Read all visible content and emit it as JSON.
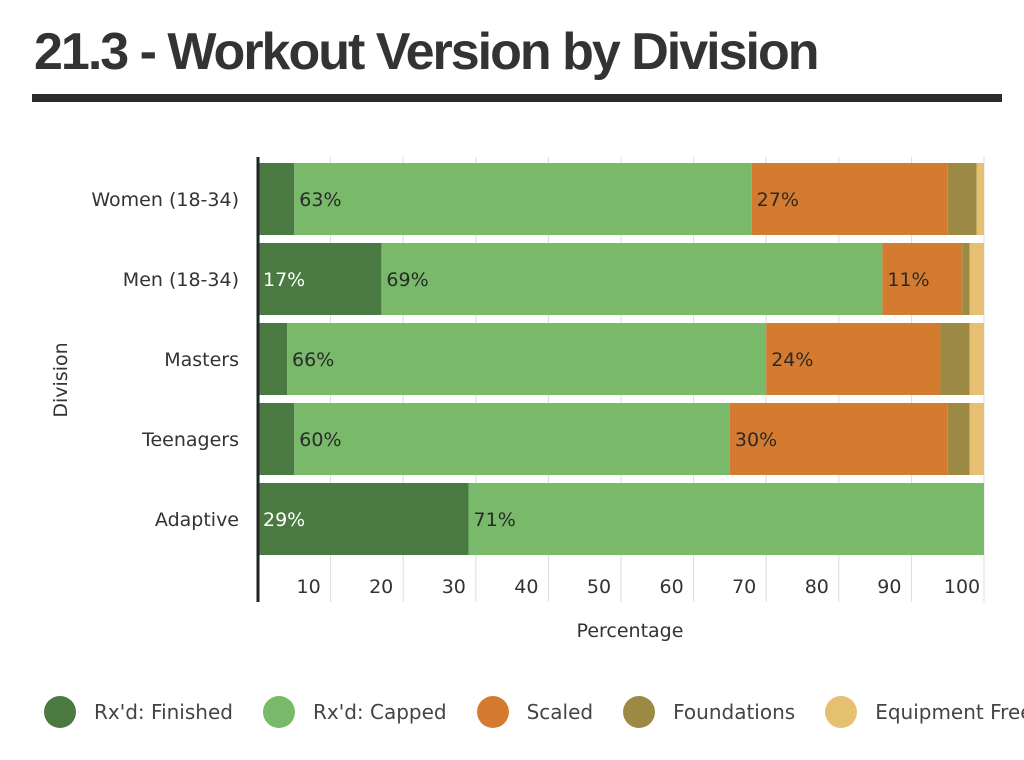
{
  "page": {
    "title": "21.3 - Workout Version by Division"
  },
  "chart_data": {
    "type": "bar",
    "orientation": "horizontal",
    "stacked": true,
    "xlabel": "Percentage",
    "ylabel": "Division",
    "xlim": [
      0,
      100
    ],
    "x_ticks": [
      10,
      20,
      30,
      40,
      50,
      60,
      70,
      80,
      90,
      100
    ],
    "grid": true,
    "legend_position": "bottom",
    "categories": [
      "Women (18-34)",
      "Men (18-34)",
      "Masters",
      "Teenagers",
      "Adaptive"
    ],
    "series": [
      {
        "name": "Rx'd: Finished",
        "color": "#4a7a42",
        "values": [
          5,
          17,
          4,
          5,
          29
        ],
        "labels": [
          "",
          "17%",
          "",
          "",
          "29%"
        ],
        "label_color": "#ffffff"
      },
      {
        "name": "Rx'd: Capped",
        "color": "#78b96a",
        "values": [
          63,
          69,
          66,
          60,
          71
        ],
        "labels": [
          "63%",
          "69%",
          "66%",
          "60%",
          "71%"
        ],
        "label_color": "#2a2a2a"
      },
      {
        "name": "Scaled",
        "color": "#d57b30",
        "values": [
          27,
          11,
          24,
          30,
          0
        ],
        "labels": [
          "27%",
          "11%",
          "24%",
          "30%",
          ""
        ],
        "label_color": "#2a2a2a"
      },
      {
        "name": "Foundations",
        "color": "#9c8944",
        "values": [
          4,
          1,
          4,
          3,
          0
        ],
        "labels": [
          "",
          "",
          "",
          "",
          ""
        ],
        "label_color": "#2a2a2a"
      },
      {
        "name": "Equipment Free",
        "color": "#e5c070",
        "values": [
          1,
          2,
          2,
          2,
          0
        ],
        "labels": [
          "",
          "",
          "",
          "",
          ""
        ],
        "label_color": "#2a2a2a"
      }
    ]
  }
}
